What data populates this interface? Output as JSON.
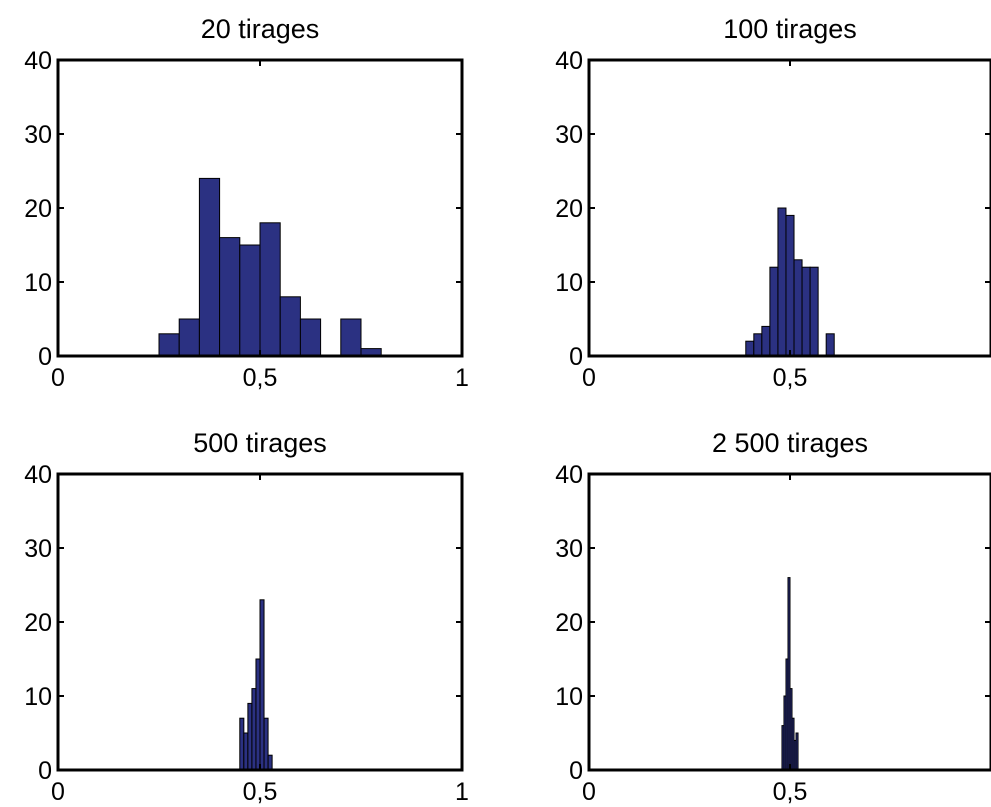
{
  "chart_data": [
    {
      "type": "bar",
      "title": "20 tirages",
      "xlim": [
        0,
        1
      ],
      "ylim": [
        0,
        40
      ],
      "xticks": [
        "0",
        "0,5",
        "1"
      ],
      "yticks": [
        "0",
        "10",
        "20",
        "30",
        "40"
      ],
      "bar_color": "#2b3182",
      "bin_width": 0.05,
      "bins_start": [
        0.25,
        0.3,
        0.35,
        0.4,
        0.45,
        0.5,
        0.55,
        0.6,
        0.7,
        0.75
      ],
      "values": [
        3,
        5,
        24,
        16,
        15,
        18,
        8,
        5,
        5,
        1
      ]
    },
    {
      "type": "bar",
      "title": "100 tirages",
      "xlim": [
        0,
        1
      ],
      "ylim": [
        0,
        40
      ],
      "xticks": [
        "0",
        "0,5",
        "1"
      ],
      "yticks": [
        "0",
        "10",
        "20",
        "30",
        "40"
      ],
      "bar_color": "#2b3182",
      "bin_width": 0.02,
      "bins_start": [
        0.39,
        0.41,
        0.43,
        0.45,
        0.47,
        0.49,
        0.51,
        0.53,
        0.55,
        0.59
      ],
      "values": [
        2,
        3,
        4,
        12,
        20,
        19,
        13,
        12,
        12,
        3
      ]
    },
    {
      "type": "bar",
      "title": "500 tirages",
      "xlim": [
        0,
        1
      ],
      "ylim": [
        0,
        40
      ],
      "xticks": [
        "0",
        "0,5",
        "1"
      ],
      "yticks": [
        "0",
        "10",
        "20",
        "30",
        "40"
      ],
      "bar_color": "#2b3182",
      "bin_width": 0.01,
      "bins_start": [
        0.45,
        0.46,
        0.47,
        0.48,
        0.49,
        0.5,
        0.51,
        0.52
      ],
      "values": [
        7,
        5,
        9,
        11,
        15,
        23,
        7,
        2
      ]
    },
    {
      "type": "bar",
      "title": "2 500 tirages",
      "xlim": [
        0,
        1
      ],
      "ylim": [
        0,
        40
      ],
      "xticks": [
        "0",
        "0,5",
        "1"
      ],
      "yticks": [
        "0",
        "10",
        "20",
        "30",
        "40"
      ],
      "bar_color": "#2b3182",
      "bin_width": 0.005,
      "bins_start": [
        0.48,
        0.485,
        0.49,
        0.495,
        0.5,
        0.505,
        0.51,
        0.515
      ],
      "values": [
        6,
        10,
        15,
        26,
        11,
        7,
        4,
        5
      ]
    }
  ]
}
